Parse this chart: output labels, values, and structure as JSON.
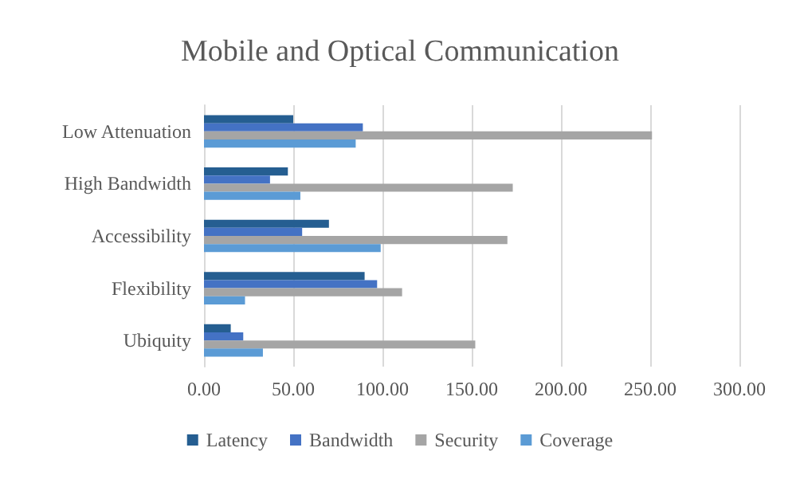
{
  "chart_data": {
    "type": "bar",
    "orientation": "horizontal",
    "title": "Mobile and Optical Communication",
    "categories": [
      "Low Attenuation",
      "High Bandwidth",
      "Accessibility",
      "Flexibility",
      "Ubiquity"
    ],
    "series": [
      {
        "name": "Latency",
        "color": "#255e91",
        "values": [
          50,
          47,
          70,
          90,
          15
        ]
      },
      {
        "name": "Bandwidth",
        "color": "#4472c4",
        "values": [
          89,
          37,
          55,
          97,
          22
        ]
      },
      {
        "name": "Security",
        "color": "#a5a5a5",
        "values": [
          251,
          173,
          170,
          111,
          152
        ]
      },
      {
        "name": "Coverage",
        "color": "#5b9bd5",
        "values": [
          85,
          54,
          99,
          23,
          33
        ]
      }
    ],
    "xlim": [
      0,
      300
    ],
    "xticks": [
      {
        "value": 0,
        "label": "0.00"
      },
      {
        "value": 50,
        "label": "50.00"
      },
      {
        "value": 100,
        "label": "100.00"
      },
      {
        "value": 150,
        "label": "150.00"
      },
      {
        "value": 200,
        "label": "200.00"
      },
      {
        "value": 250,
        "label": "250.00"
      },
      {
        "value": 300,
        "label": "300.00"
      }
    ],
    "grid": "x",
    "legend": "bottom"
  }
}
